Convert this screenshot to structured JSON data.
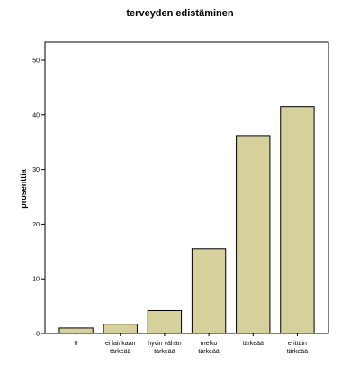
{
  "chart_data": {
    "type": "bar",
    "title": "terveyden edistäminen",
    "xlabel": "",
    "ylabel": "prosenttia",
    "ylim": [
      0,
      50
    ],
    "yticks": [
      0,
      10,
      20,
      30,
      40,
      50
    ],
    "grid": false,
    "colors": {
      "bar_fill": "#d6d09c",
      "bar_stroke": "#000000"
    },
    "categories": [
      [
        "0"
      ],
      [
        "ei lainkaan",
        "tärkeää"
      ],
      [
        "hyvin vähän",
        "tärkeää"
      ],
      [
        "melko",
        "tärkeää"
      ],
      [
        "tärkeää"
      ],
      [
        "erittäin",
        "tärkeää"
      ]
    ],
    "values": [
      1.0,
      1.7,
      4.2,
      15.5,
      36.2,
      41.5
    ]
  }
}
